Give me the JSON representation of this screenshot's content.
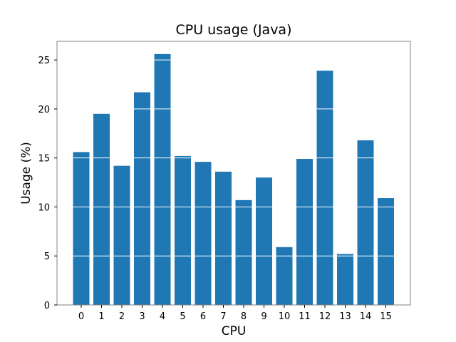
{
  "chart_data": {
    "type": "bar",
    "title": "CPU usage (Java)",
    "xlabel": "CPU",
    "ylabel": "Usage (%)",
    "categories": [
      "0",
      "1",
      "2",
      "3",
      "4",
      "5",
      "6",
      "7",
      "8",
      "9",
      "10",
      "11",
      "12",
      "13",
      "14",
      "15"
    ],
    "values": [
      15.6,
      19.5,
      14.2,
      21.7,
      25.6,
      15.2,
      14.6,
      13.6,
      10.7,
      13.0,
      5.9,
      14.9,
      23.9,
      5.2,
      16.8,
      10.9
    ],
    "ylim": [
      0,
      26.9
    ],
    "yticks": [
      0,
      5,
      10,
      15,
      20,
      25
    ],
    "grid": "y-major, white, drawn above bars",
    "bar_color": "#1f77b4",
    "frame_color": "#808080"
  }
}
